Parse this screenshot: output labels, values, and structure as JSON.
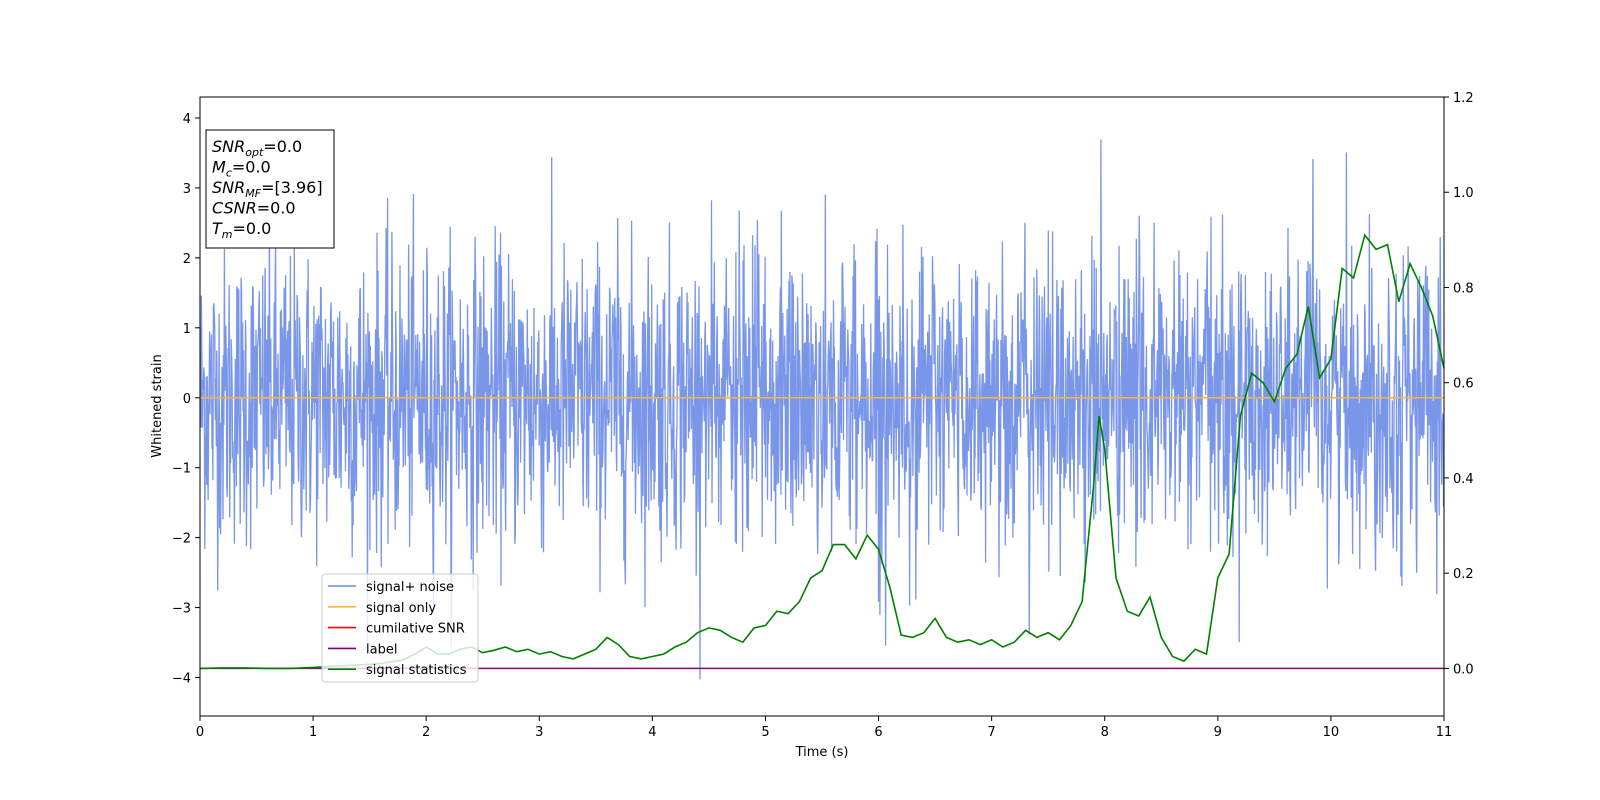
{
  "chart_data": {
    "type": "line",
    "xlabel": "Time (s)",
    "ylabel": "Whitened strain",
    "xlim": [
      0,
      11
    ],
    "ylim": [
      -4.55,
      4.3
    ],
    "y2lim": [
      -0.1,
      1.2
    ],
    "x_ticks": [
      0,
      1,
      2,
      3,
      4,
      5,
      6,
      7,
      8,
      9,
      10,
      11
    ],
    "y_ticks": [
      -4,
      -3,
      -2,
      -1,
      0,
      1,
      2,
      3,
      4
    ],
    "y2_ticks": [
      0.0,
      0.2,
      0.4,
      0.6,
      0.8,
      1.0,
      1.2
    ],
    "grid": false,
    "legend_location": "lower-left",
    "colors": {
      "signal_noise": "#6a8be6",
      "signal_only": "#ffb347",
      "cumulative_snr": "#ff0000",
      "label": "#800080",
      "signal_statistics": "#008000"
    },
    "series": [
      {
        "name": "signal+ noise",
        "axis": "left",
        "style": "noise",
        "description_values": {
          "envelope_min": -4.15,
          "envelope_max": 3.9,
          "typical_range": [
            -2.5,
            2.5
          ]
        }
      },
      {
        "name": "signal only",
        "axis": "left",
        "x": [
          0,
          11
        ],
        "values": [
          0,
          0
        ]
      },
      {
        "name": "cumilative SNR",
        "axis": "right",
        "x": [],
        "values": []
      },
      {
        "name": "label",
        "axis": "right",
        "x": [
          0,
          11
        ],
        "values": [
          0.0,
          0.0
        ]
      },
      {
        "name": "signal statistics",
        "axis": "right",
        "x": [
          0,
          0.2,
          0.4,
          0.6,
          0.8,
          1.0,
          1.2,
          1.4,
          1.6,
          1.8,
          1.9,
          2.0,
          2.1,
          2.2,
          2.3,
          2.4,
          2.5,
          2.6,
          2.7,
          2.8,
          2.9,
          3.0,
          3.1,
          3.2,
          3.3,
          3.4,
          3.5,
          3.6,
          3.7,
          3.8,
          3.9,
          4.0,
          4.1,
          4.2,
          4.3,
          4.4,
          4.5,
          4.6,
          4.7,
          4.8,
          4.9,
          5.0,
          5.1,
          5.2,
          5.3,
          5.4,
          5.5,
          5.6,
          5.7,
          5.8,
          5.9,
          6.0,
          6.1,
          6.2,
          6.3,
          6.4,
          6.5,
          6.6,
          6.7,
          6.8,
          6.9,
          7.0,
          7.1,
          7.2,
          7.3,
          7.4,
          7.5,
          7.6,
          7.7,
          7.8,
          7.9,
          7.95,
          8.0,
          8.1,
          8.2,
          8.3,
          8.4,
          8.5,
          8.6,
          8.7,
          8.8,
          8.9,
          9.0,
          9.1,
          9.2,
          9.3,
          9.4,
          9.5,
          9.6,
          9.7,
          9.8,
          9.9,
          10.0,
          10.1,
          10.2,
          10.3,
          10.4,
          10.5,
          10.6,
          10.7,
          10.8,
          10.9,
          11.0
        ],
        "values": [
          0.0,
          0.001,
          0.001,
          0.0,
          0.0,
          0.002,
          0.005,
          0.007,
          0.01,
          0.018,
          0.03,
          0.045,
          0.03,
          0.03,
          0.04,
          0.045,
          0.033,
          0.038,
          0.045,
          0.035,
          0.04,
          0.03,
          0.035,
          0.025,
          0.02,
          0.03,
          0.04,
          0.065,
          0.05,
          0.025,
          0.02,
          0.025,
          0.03,
          0.045,
          0.055,
          0.075,
          0.085,
          0.08,
          0.065,
          0.055,
          0.085,
          0.09,
          0.12,
          0.115,
          0.14,
          0.19,
          0.205,
          0.26,
          0.26,
          0.23,
          0.28,
          0.25,
          0.17,
          0.07,
          0.065,
          0.075,
          0.105,
          0.065,
          0.055,
          0.06,
          0.05,
          0.06,
          0.045,
          0.055,
          0.08,
          0.065,
          0.075,
          0.06,
          0.09,
          0.14,
          0.38,
          0.53,
          0.46,
          0.19,
          0.12,
          0.11,
          0.15,
          0.065,
          0.025,
          0.015,
          0.04,
          0.03,
          0.19,
          0.24,
          0.53,
          0.62,
          0.6,
          0.56,
          0.63,
          0.66,
          0.76,
          0.61,
          0.65,
          0.84,
          0.82,
          0.91,
          0.88,
          0.89,
          0.77,
          0.85,
          0.8,
          0.74,
          0.63
        ]
      }
    ],
    "info_box": {
      "lines": [
        {
          "main": "SNR",
          "sub": "opt",
          "value": "=0.0"
        },
        {
          "main": "M",
          "sub": "c",
          "value": "=0.0"
        },
        {
          "main": "SNR",
          "sub": "MF",
          "value": "=[3.96]"
        },
        {
          "main": "CSNR",
          "sub": "",
          "value": "=0.0"
        },
        {
          "main": "T",
          "sub": "m",
          "value": "=0.0"
        }
      ]
    }
  }
}
